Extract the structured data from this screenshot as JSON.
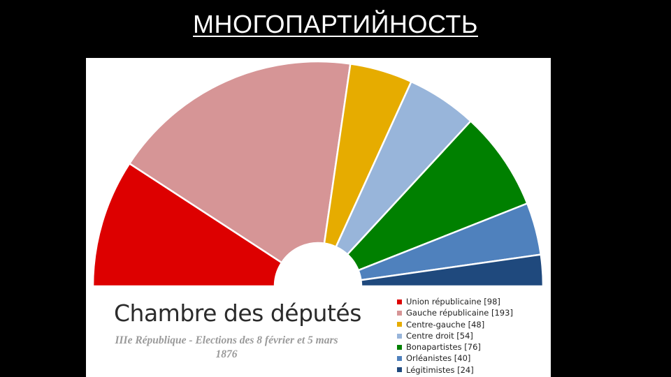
{
  "slide": {
    "title": "МНОГОПАРТИЙНОСТЬ"
  },
  "chart_data": {
    "type": "pie",
    "subtype": "parliament-hemicycle",
    "title": "Chambre des députés",
    "subtitle": "IIIe République - Elections des 8 février et 5 mars 1876",
    "legend_position": "bottom-right",
    "series": [
      {
        "name": "Union républicaine",
        "value": 98,
        "color": "#dd0000",
        "label": "Union républicaine [98]"
      },
      {
        "name": "Gauche républicaine",
        "value": 193,
        "color": "#d69596",
        "label": "Gauche républicaine [193]"
      },
      {
        "name": "Centre-gauche",
        "value": 48,
        "color": "#e6ac00",
        "label": "Centre-gauche [48]"
      },
      {
        "name": "Centre droit",
        "value": 54,
        "color": "#98b5da",
        "label": "Centre droit [54]"
      },
      {
        "name": "Bonapartistes",
        "value": 76,
        "color": "#008000",
        "label": "Bonapartistes [76]"
      },
      {
        "name": "Orléanistes",
        "value": 40,
        "color": "#4f81bd",
        "label": "Orléanistes [40]"
      },
      {
        "name": "Légitimistes",
        "value": 24,
        "color": "#1f497d",
        "label": "Légitimistes [24]"
      }
    ]
  }
}
